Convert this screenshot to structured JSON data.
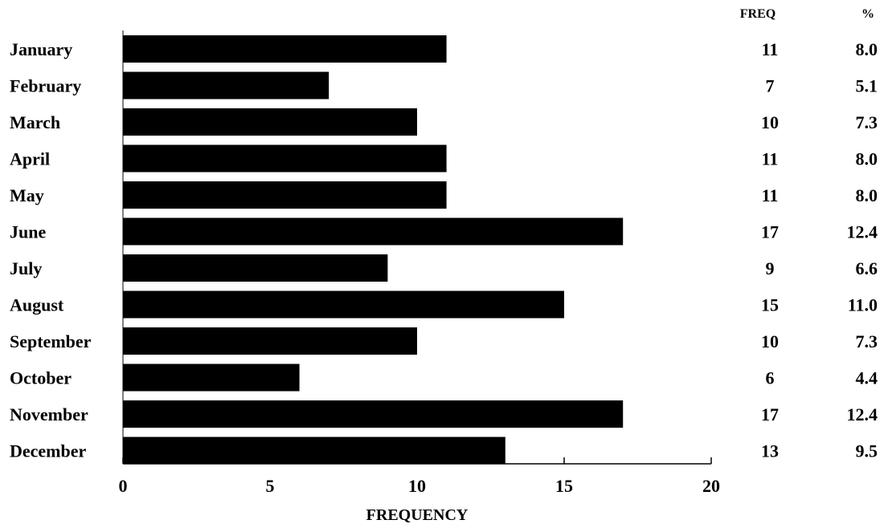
{
  "chart_data": {
    "type": "bar",
    "orientation": "horizontal",
    "categories": [
      "January",
      "February",
      "March",
      "April",
      "May",
      "June",
      "July",
      "August",
      "September",
      "October",
      "November",
      "December"
    ],
    "values": [
      11,
      7,
      10,
      11,
      11,
      17,
      9,
      15,
      10,
      6,
      17,
      13
    ],
    "percent": [
      "8.0",
      "5.1",
      "7.3",
      "8.0",
      "8.0",
      "12.4",
      "6.6",
      "11.0",
      "7.3",
      "4.4",
      "12.4",
      "9.5"
    ],
    "xlabel": "FREQUENCY",
    "xlim": [
      0,
      20
    ],
    "xticks": [
      0,
      5,
      10,
      15,
      20
    ],
    "table_headers": {
      "freq": "FREQ",
      "percent": "%"
    },
    "grid": false,
    "bar_color": "#000000"
  }
}
